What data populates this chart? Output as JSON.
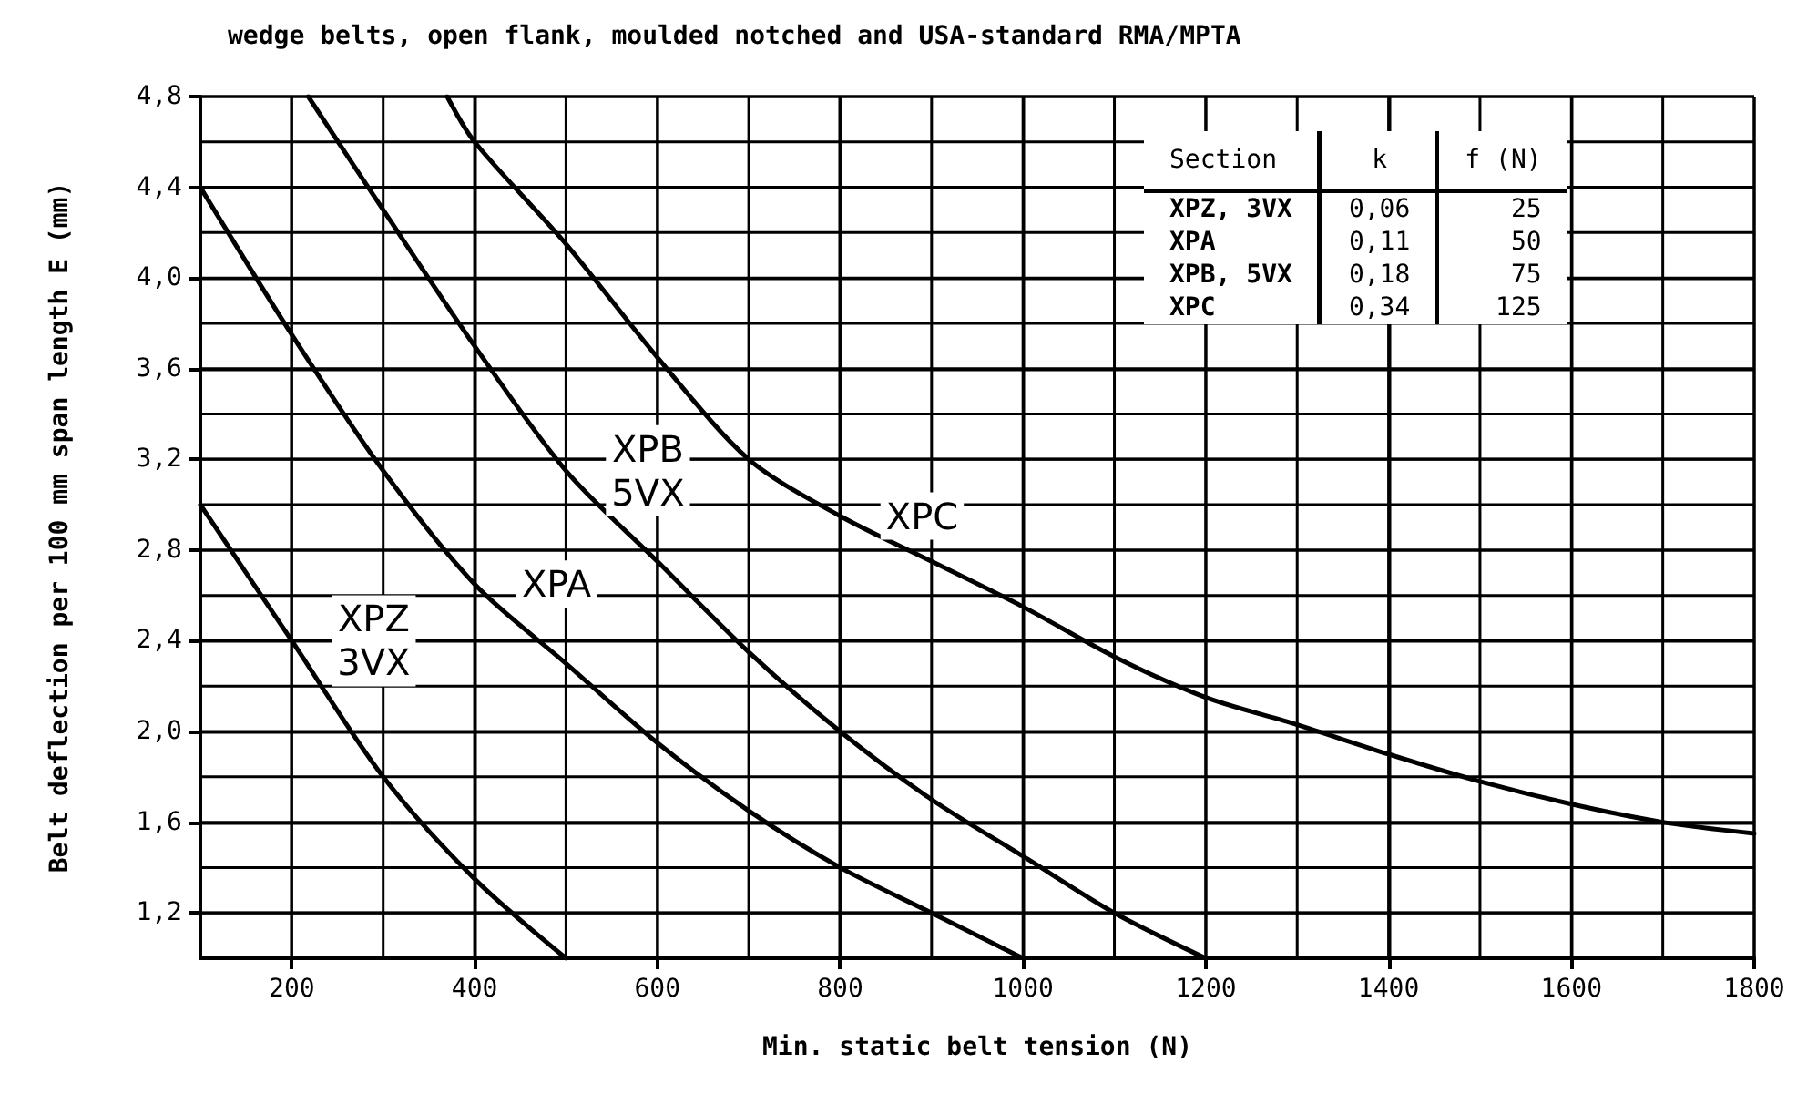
{
  "chart_data": {
    "type": "line",
    "title": "wedge belts, open flank, moulded notched and USA-standard RMA/MPTA",
    "xlabel": "Min. static belt tension (N)",
    "ylabel": "Belt deflection per 100 mm span length E (mm)",
    "xlim": [
      100,
      1800
    ],
    "ylim": [
      1.0,
      4.8
    ],
    "xticks": [
      {
        "value": 100,
        "label": null
      },
      200,
      {
        "value": 300,
        "label": null
      },
      400,
      {
        "value": 500,
        "label": null
      },
      600,
      {
        "value": 700,
        "label": null
      },
      800,
      {
        "value": 900,
        "label": null
      },
      1000,
      {
        "value": 1100,
        "label": null
      },
      1200,
      {
        "value": 1300,
        "label": null
      },
      1400,
      {
        "value": 1500,
        "label": null
      },
      1600,
      {
        "value": 1700,
        "label": null
      },
      1800
    ],
    "yticks": [
      {
        "value": 1.0,
        "label": null
      },
      {
        "value": 1.2,
        "label": "1,2"
      },
      {
        "value": 1.4,
        "label": null
      },
      {
        "value": 1.6,
        "label": "1,6"
      },
      {
        "value": 1.8,
        "label": null
      },
      {
        "value": 2.0,
        "label": "2,0"
      },
      {
        "value": 2.2,
        "label": null
      },
      {
        "value": 2.4,
        "label": "2,4"
      },
      {
        "value": 2.6,
        "label": null
      },
      {
        "value": 2.8,
        "label": "2,8"
      },
      {
        "value": 3.0,
        "label": null
      },
      {
        "value": 3.2,
        "label": "3,2"
      },
      {
        "value": 3.4,
        "label": null
      },
      {
        "value": 3.6,
        "label": "3,6"
      },
      {
        "value": 3.8,
        "label": null
      },
      {
        "value": 4.0,
        "label": "4,0"
      },
      {
        "value": 4.2,
        "label": null
      },
      {
        "value": 4.4,
        "label": "4,4"
      },
      {
        "value": 4.6,
        "label": null
      },
      {
        "value": 4.8,
        "label": "4,8"
      }
    ],
    "grid": true,
    "marker": "none",
    "series": [
      {
        "name": "XPZ 3VX",
        "color": "#000000",
        "x": [
          100,
          200,
          300,
          400,
          500
        ],
        "values": [
          3.0,
          2.4,
          1.8,
          1.35,
          1.0
        ]
      },
      {
        "name": "XPA",
        "color": "#000000",
        "x": [
          100,
          200,
          300,
          400,
          500,
          600,
          700,
          800,
          900,
          1000
        ],
        "values": [
          4.4,
          3.75,
          3.15,
          2.65,
          2.3,
          1.95,
          1.65,
          1.4,
          1.2,
          1.0
        ]
      },
      {
        "name": "XPB 5VX",
        "color": "#000000",
        "x": [
          218,
          300,
          400,
          500,
          600,
          700,
          800,
          900,
          1000,
          1100,
          1200
        ],
        "values": [
          4.8,
          4.3,
          3.7,
          3.15,
          2.75,
          2.35,
          2.0,
          1.7,
          1.45,
          1.2,
          1.0
        ]
      },
      {
        "name": "XPC",
        "color": "#000000",
        "x": [
          370,
          400,
          500,
          600,
          700,
          800,
          900,
          1000,
          1100,
          1200,
          1300,
          1400,
          1500,
          1600,
          1700,
          1800
        ],
        "values": [
          4.8,
          4.6,
          4.15,
          3.65,
          3.2,
          2.95,
          2.75,
          2.55,
          2.33,
          2.15,
          2.03,
          1.9,
          1.78,
          1.68,
          1.6,
          1.55
        ]
      }
    ],
    "annotations": [
      "Section",
      "k",
      "f (N)",
      "XPZ, 3VX",
      "0,06",
      "25",
      "XPA",
      "0,11",
      "50",
      "XPB, 5VX",
      "0,18",
      "75",
      "XPC",
      "0,34",
      "125"
    ]
  }
}
